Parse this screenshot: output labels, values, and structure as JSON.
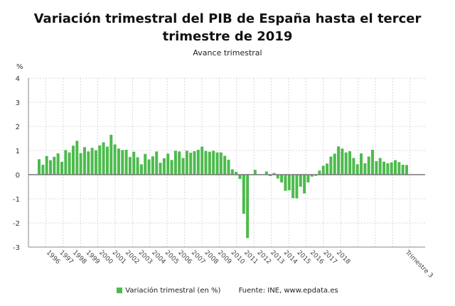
{
  "chart_data": {
    "type": "bar",
    "title": "Variación trimestral del PIB de España hasta el tercer trimestre de 2019",
    "subtitle": "Avance trimestral",
    "ylabel": "%",
    "ylim": [
      -3,
      4
    ],
    "yticks": [
      4,
      3,
      2,
      1,
      0,
      -1,
      -2,
      -3
    ],
    "grid": true,
    "legend_position": "bottom",
    "x_tick_labels": [
      "1996",
      "1997",
      "1998",
      "1999",
      "2000",
      "2001",
      "2002",
      "2003",
      "2004",
      "2005",
      "2006",
      "2007",
      "2008",
      "2009",
      "2010",
      "2011",
      "2012",
      "2013",
      "2014",
      "2015",
      "2016",
      "2017",
      "2018",
      "Trimestre 3"
    ],
    "series": [
      {
        "name": "Variación trimestral (en %)",
        "color": "#4cbb4c",
        "values": [
          0.64,
          0.41,
          0.77,
          0.6,
          0.74,
          0.88,
          0.53,
          1.02,
          0.92,
          1.2,
          1.4,
          0.89,
          1.14,
          0.96,
          1.11,
          1.01,
          1.21,
          1.34,
          1.16,
          1.65,
          1.25,
          1.08,
          1.02,
          1.03,
          0.73,
          0.95,
          0.72,
          0.43,
          0.86,
          0.63,
          0.76,
          0.96,
          0.49,
          0.68,
          0.87,
          0.61,
          0.99,
          0.96,
          0.69,
          0.99,
          0.91,
          0.97,
          1.03,
          1.16,
          0.98,
          0.95,
          0.99,
          0.92,
          0.92,
          0.78,
          0.62,
          0.22,
          0.12,
          -0.18,
          -1.62,
          -2.63,
          -0.02,
          0.2,
          0.02,
          0.0,
          0.13,
          -0.06,
          0.07,
          -0.16,
          -0.32,
          -0.67,
          -0.65,
          -0.97,
          -0.98,
          -0.5,
          -0.78,
          -0.32,
          -0.08,
          -0.05,
          0.17,
          0.37,
          0.46,
          0.75,
          0.87,
          1.17,
          1.08,
          0.92,
          0.97,
          0.69,
          0.43,
          0.88,
          0.47,
          0.75,
          1.03,
          0.56,
          0.69,
          0.54,
          0.47,
          0.51,
          0.6,
          0.52,
          0.41,
          0.4
        ]
      }
    ]
  },
  "source": "Fuente: INE, www.epdata.es"
}
